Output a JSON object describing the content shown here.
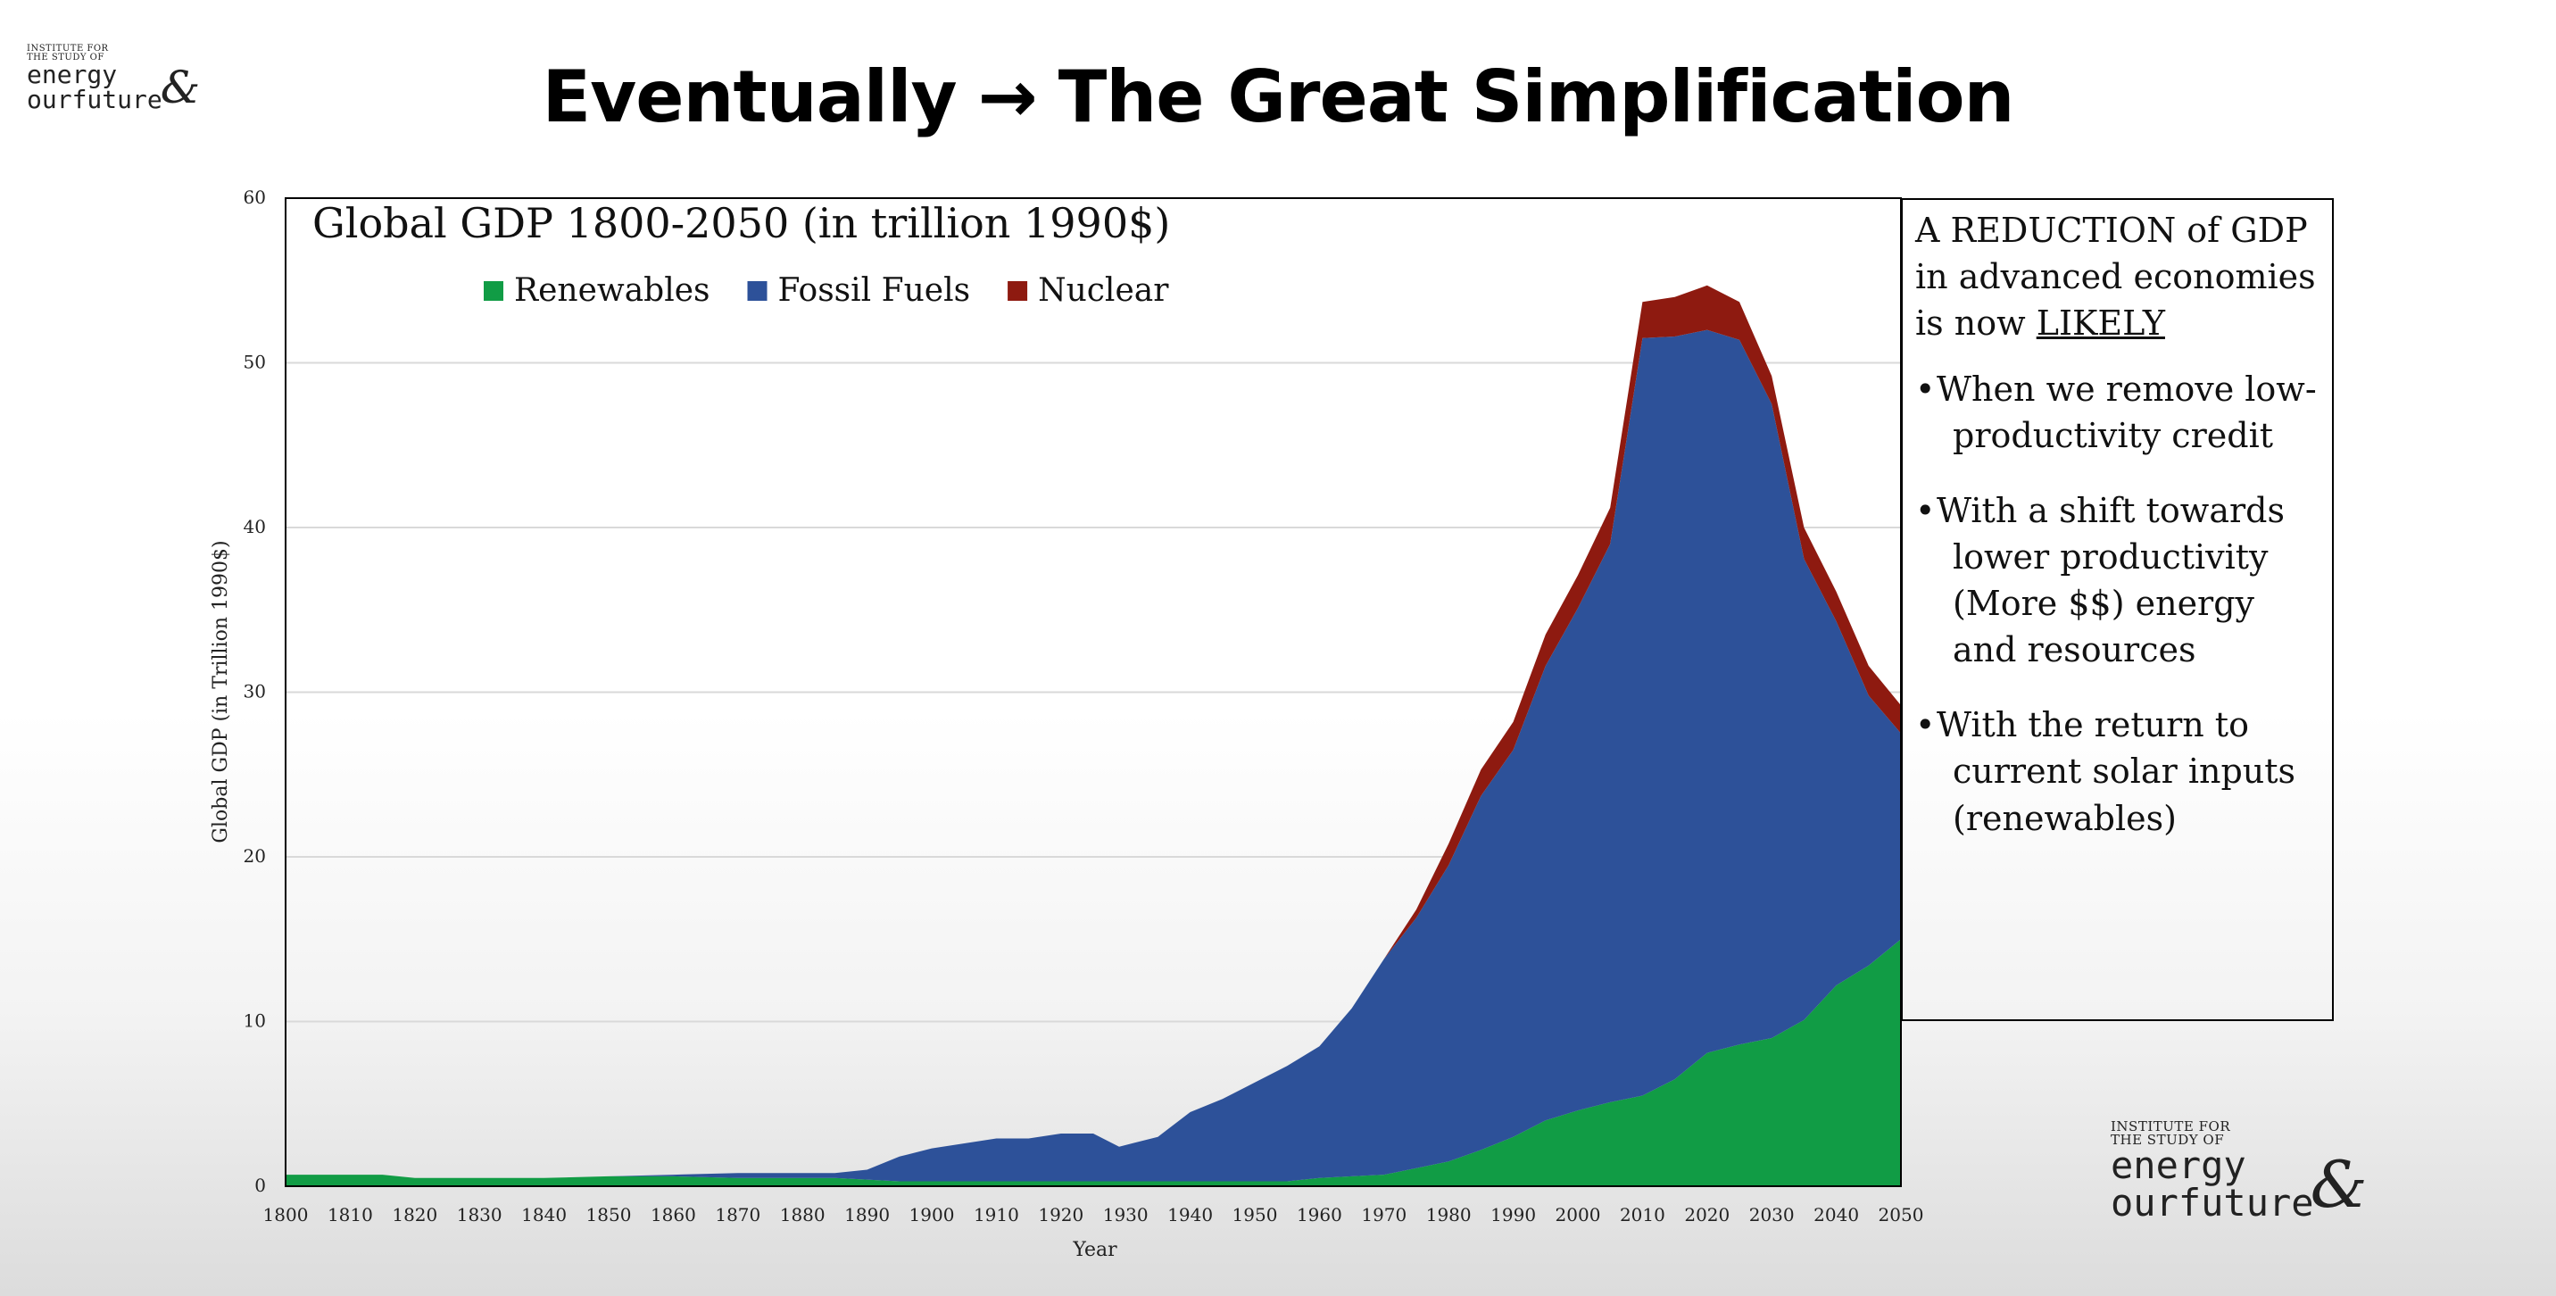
{
  "logo": {
    "small_line1": "INSTITUTE FOR",
    "small_line2": "THE STUDY OF",
    "word1": "energy",
    "amp": "&",
    "word2_a": "our",
    "word2_b": "future"
  },
  "slide": {
    "title_left": "Eventually",
    "title_arrow": "→",
    "title_right": "The Great Simplification"
  },
  "side_box": {
    "intro_line1": "A REDUCTION of GDP",
    "intro_line2": "in advanced economies",
    "intro_line3_prefix": "is now ",
    "intro_line3_underlined": "LIKELY",
    "bullets": [
      {
        "lines": [
          "When we remove low-",
          "productivity credit"
        ]
      },
      {
        "lines": [
          "With a shift towards",
          "lower productivity",
          "(More $$) energy",
          "and resources"
        ]
      },
      {
        "lines": [
          "With the return to",
          "current solar inputs",
          "(renewables)"
        ]
      }
    ]
  },
  "colors": {
    "renewables": "#119c45",
    "fossil": "#2d5199",
    "nuclear": "#8e1a10",
    "grid": "#d9d9d9"
  },
  "chart_data": {
    "type": "area",
    "stacked": true,
    "title": "Global GDP 1800-2050 (in trillion 1990$)",
    "xlabel": "Year",
    "ylabel": "Global GDP (in Trillion 1990$)",
    "xlim": [
      1800,
      2050
    ],
    "ylim": [
      0,
      60
    ],
    "yticks": [
      0,
      10,
      20,
      30,
      40,
      50,
      60
    ],
    "xticks": [
      1800,
      1810,
      1820,
      1830,
      1840,
      1850,
      1860,
      1870,
      1880,
      1890,
      1900,
      1910,
      1920,
      1930,
      1940,
      1950,
      1960,
      1970,
      1980,
      1990,
      2000,
      2010,
      2020,
      2030,
      2040,
      2050
    ],
    "grid": true,
    "legend_position": "top",
    "x": [
      1800,
      1810,
      1815,
      1820,
      1830,
      1840,
      1850,
      1860,
      1870,
      1880,
      1885,
      1890,
      1895,
      1900,
      1910,
      1915,
      1920,
      1925,
      1929,
      1935,
      1940,
      1945,
      1950,
      1955,
      1960,
      1965,
      1970,
      1975,
      1980,
      1985,
      1990,
      1995,
      2000,
      2005,
      2010,
      2015,
      2020,
      2025,
      2030,
      2035,
      2040,
      2045,
      2050
    ],
    "series": [
      {
        "name": "Renewables",
        "values": [
          0.7,
          0.7,
          0.7,
          0.5,
          0.5,
          0.5,
          0.6,
          0.6,
          0.5,
          0.5,
          0.5,
          0.4,
          0.3,
          0.3,
          0.3,
          0.3,
          0.3,
          0.3,
          0.3,
          0.3,
          0.3,
          0.3,
          0.3,
          0.3,
          0.5,
          0.6,
          0.7,
          1.1,
          1.5,
          2.2,
          3.0,
          4.0,
          4.6,
          5.1,
          5.5,
          6.5,
          8.1,
          8.6,
          9.0,
          10.1,
          12.2,
          13.4,
          15.0
        ]
      },
      {
        "name": "Fossil Fuels",
        "values": [
          0,
          0,
          0,
          0,
          0,
          0,
          0,
          0.1,
          0.3,
          0.3,
          0.3,
          0.6,
          1.5,
          2.0,
          2.6,
          2.6,
          2.9,
          2.9,
          2.1,
          2.7,
          4.2,
          5.0,
          6.0,
          7.0,
          8.0,
          10.2,
          13.1,
          15.2,
          18.0,
          21.5,
          23.5,
          27.6,
          30.5,
          33.9,
          46.0,
          45.1,
          43.9,
          42.8,
          38.5,
          28.0,
          22.1,
          16.4,
          12.5
        ]
      },
      {
        "name": "Nuclear",
        "values": [
          0,
          0,
          0,
          0,
          0,
          0,
          0,
          0,
          0,
          0,
          0,
          0,
          0,
          0,
          0,
          0,
          0,
          0,
          0,
          0,
          0,
          0,
          0,
          0,
          0,
          0,
          0,
          0.5,
          1.3,
          1.6,
          1.7,
          1.9,
          2.0,
          2.2,
          2.2,
          2.4,
          2.7,
          2.3,
          1.7,
          1.9,
          1.8,
          1.8,
          1.7
        ]
      }
    ]
  }
}
